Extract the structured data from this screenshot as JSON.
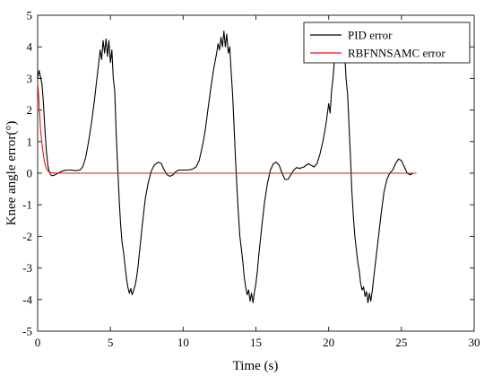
{
  "chart_data": {
    "type": "line",
    "xlabel": "Time (s)",
    "ylabel": "Knee angle error(°)",
    "xlim": [
      0,
      30
    ],
    "ylim": [
      -5,
      5
    ],
    "x_ticks": [
      0,
      5,
      10,
      15,
      20,
      25,
      30
    ],
    "y_ticks": [
      5,
      4,
      3,
      2,
      1,
      0,
      -1,
      -2,
      -3,
      -4,
      -5
    ],
    "grid": false,
    "legend_position": "top-right",
    "series": [
      {
        "name": "PID error",
        "color": "#000000",
        "points": [
          [
            0,
            3.0
          ],
          [
            0.1,
            3.25
          ],
          [
            0.2,
            3.05
          ],
          [
            0.3,
            2.8
          ],
          [
            0.4,
            2.2
          ],
          [
            0.5,
            1.4
          ],
          [
            0.6,
            0.7
          ],
          [
            0.7,
            0.25
          ],
          [
            0.8,
            0.05
          ],
          [
            0.9,
            -0.05
          ],
          [
            1.0,
            -0.08
          ],
          [
            1.2,
            -0.05
          ],
          [
            1.4,
            0.0
          ],
          [
            1.6,
            0.05
          ],
          [
            1.8,
            0.08
          ],
          [
            2.0,
            0.1
          ],
          [
            2.3,
            0.1
          ],
          [
            2.6,
            0.08
          ],
          [
            2.9,
            0.1
          ],
          [
            3.1,
            0.2
          ],
          [
            3.3,
            0.5
          ],
          [
            3.5,
            1.0
          ],
          [
            3.7,
            1.6
          ],
          [
            3.9,
            2.3
          ],
          [
            4.05,
            2.9
          ],
          [
            4.2,
            3.5
          ],
          [
            4.3,
            3.9
          ],
          [
            4.4,
            3.6
          ],
          [
            4.5,
            4.2
          ],
          [
            4.6,
            3.8
          ],
          [
            4.7,
            4.25
          ],
          [
            4.8,
            3.7
          ],
          [
            4.9,
            4.2
          ],
          [
            5.0,
            3.5
          ],
          [
            5.1,
            3.9
          ],
          [
            5.2,
            3.0
          ],
          [
            5.3,
            2.6
          ],
          [
            5.4,
            1.2
          ],
          [
            5.5,
            0.2
          ],
          [
            5.6,
            -0.8
          ],
          [
            5.7,
            -1.6
          ],
          [
            5.8,
            -2.2
          ],
          [
            5.9,
            -2.5
          ],
          [
            6.0,
            -2.9
          ],
          [
            6.1,
            -3.3
          ],
          [
            6.2,
            -3.6
          ],
          [
            6.3,
            -3.8
          ],
          [
            6.4,
            -3.65
          ],
          [
            6.5,
            -3.85
          ],
          [
            6.6,
            -3.7
          ],
          [
            6.7,
            -3.55
          ],
          [
            6.8,
            -3.3
          ],
          [
            6.9,
            -2.95
          ],
          [
            7.0,
            -2.5
          ],
          [
            7.2,
            -1.6
          ],
          [
            7.4,
            -0.8
          ],
          [
            7.6,
            -0.3
          ],
          [
            7.8,
            0.05
          ],
          [
            8.0,
            0.25
          ],
          [
            8.3,
            0.35
          ],
          [
            8.5,
            0.3
          ],
          [
            8.7,
            0.1
          ],
          [
            8.9,
            -0.05
          ],
          [
            9.1,
            -0.1
          ],
          [
            9.3,
            -0.05
          ],
          [
            9.5,
            0.05
          ],
          [
            9.7,
            0.1
          ],
          [
            10.0,
            0.1
          ],
          [
            10.3,
            0.1
          ],
          [
            10.6,
            0.12
          ],
          [
            10.9,
            0.2
          ],
          [
            11.1,
            0.4
          ],
          [
            11.3,
            0.8
          ],
          [
            11.5,
            1.3
          ],
          [
            11.7,
            2.0
          ],
          [
            11.9,
            2.7
          ],
          [
            12.1,
            3.3
          ],
          [
            12.3,
            3.8
          ],
          [
            12.4,
            4.1
          ],
          [
            12.5,
            3.9
          ],
          [
            12.6,
            4.3
          ],
          [
            12.7,
            4.0
          ],
          [
            12.8,
            4.5
          ],
          [
            12.9,
            4.0
          ],
          [
            13.0,
            4.4
          ],
          [
            13.1,
            3.8
          ],
          [
            13.2,
            4.0
          ],
          [
            13.3,
            3.2
          ],
          [
            13.4,
            2.5
          ],
          [
            13.5,
            1.5
          ],
          [
            13.6,
            0.4
          ],
          [
            13.7,
            -0.5
          ],
          [
            13.8,
            -1.3
          ],
          [
            13.9,
            -2.0
          ],
          [
            14.0,
            -2.4
          ],
          [
            14.1,
            -2.8
          ],
          [
            14.2,
            -3.3
          ],
          [
            14.3,
            -3.6
          ],
          [
            14.4,
            -3.85
          ],
          [
            14.5,
            -3.7
          ],
          [
            14.6,
            -4.05
          ],
          [
            14.7,
            -3.8
          ],
          [
            14.8,
            -4.1
          ],
          [
            14.9,
            -3.75
          ],
          [
            15.0,
            -3.5
          ],
          [
            15.1,
            -3.1
          ],
          [
            15.2,
            -2.6
          ],
          [
            15.4,
            -1.7
          ],
          [
            15.6,
            -0.9
          ],
          [
            15.8,
            -0.3
          ],
          [
            16.0,
            0.1
          ],
          [
            16.2,
            0.3
          ],
          [
            16.4,
            0.35
          ],
          [
            16.6,
            0.25
          ],
          [
            16.8,
            0.0
          ],
          [
            17.0,
            -0.2
          ],
          [
            17.2,
            -0.2
          ],
          [
            17.4,
            -0.05
          ],
          [
            17.6,
            0.1
          ],
          [
            17.8,
            0.18
          ],
          [
            18.0,
            0.15
          ],
          [
            18.3,
            0.2
          ],
          [
            18.6,
            0.3
          ],
          [
            18.8,
            0.25
          ],
          [
            19.0,
            0.2
          ],
          [
            19.2,
            0.3
          ],
          [
            19.4,
            0.6
          ],
          [
            19.6,
            1.0
          ],
          [
            19.8,
            1.5
          ],
          [
            20.0,
            2.2
          ],
          [
            20.1,
            1.9
          ],
          [
            20.2,
            2.6
          ],
          [
            20.3,
            3.0
          ],
          [
            20.4,
            3.6
          ],
          [
            20.5,
            3.8
          ],
          [
            20.6,
            3.5
          ],
          [
            20.7,
            3.95
          ],
          [
            20.8,
            3.7
          ],
          [
            20.9,
            4.0
          ],
          [
            21.0,
            3.5
          ],
          [
            21.1,
            3.8
          ],
          [
            21.2,
            3.0
          ],
          [
            21.3,
            2.5
          ],
          [
            21.4,
            1.5
          ],
          [
            21.5,
            0.5
          ],
          [
            21.6,
            -0.6
          ],
          [
            21.7,
            -1.4
          ],
          [
            21.8,
            -2.0
          ],
          [
            21.9,
            -2.4
          ],
          [
            22.0,
            -2.8
          ],
          [
            22.1,
            -3.1
          ],
          [
            22.2,
            -3.5
          ],
          [
            22.3,
            -3.7
          ],
          [
            22.4,
            -3.6
          ],
          [
            22.5,
            -3.9
          ],
          [
            22.6,
            -3.75
          ],
          [
            22.7,
            -4.1
          ],
          [
            22.8,
            -3.8
          ],
          [
            22.9,
            -4.05
          ],
          [
            23.0,
            -3.7
          ],
          [
            23.1,
            -3.3
          ],
          [
            23.2,
            -2.9
          ],
          [
            23.4,
            -2.1
          ],
          [
            23.6,
            -1.3
          ],
          [
            23.8,
            -0.6
          ],
          [
            24.0,
            -0.2
          ],
          [
            24.2,
            0.0
          ],
          [
            24.4,
            0.1
          ],
          [
            24.6,
            0.3
          ],
          [
            24.8,
            0.45
          ],
          [
            25.0,
            0.4
          ],
          [
            25.2,
            0.2
          ],
          [
            25.4,
            0.0
          ],
          [
            25.6,
            -0.05
          ],
          [
            25.8,
            0.0
          ],
          [
            26.0,
            0.0
          ]
        ]
      },
      {
        "name": "RBFNNSAMC error",
        "color": "#e8121a",
        "points": [
          [
            0,
            2.85
          ],
          [
            0.05,
            2.6
          ],
          [
            0.1,
            2.2
          ],
          [
            0.15,
            1.8
          ],
          [
            0.2,
            1.4
          ],
          [
            0.3,
            0.9
          ],
          [
            0.4,
            0.55
          ],
          [
            0.5,
            0.3
          ],
          [
            0.6,
            0.15
          ],
          [
            0.7,
            0.07
          ],
          [
            0.8,
            0.03
          ],
          [
            1.0,
            0.01
          ],
          [
            1.5,
            0.0
          ],
          [
            3.0,
            0.0
          ],
          [
            6.0,
            0.0
          ],
          [
            9.0,
            0.0
          ],
          [
            12.0,
            0.0
          ],
          [
            15.0,
            0.0
          ],
          [
            18.0,
            0.0
          ],
          [
            21.0,
            0.0
          ],
          [
            24.0,
            0.0
          ],
          [
            26.0,
            0.0
          ]
        ]
      }
    ]
  }
}
